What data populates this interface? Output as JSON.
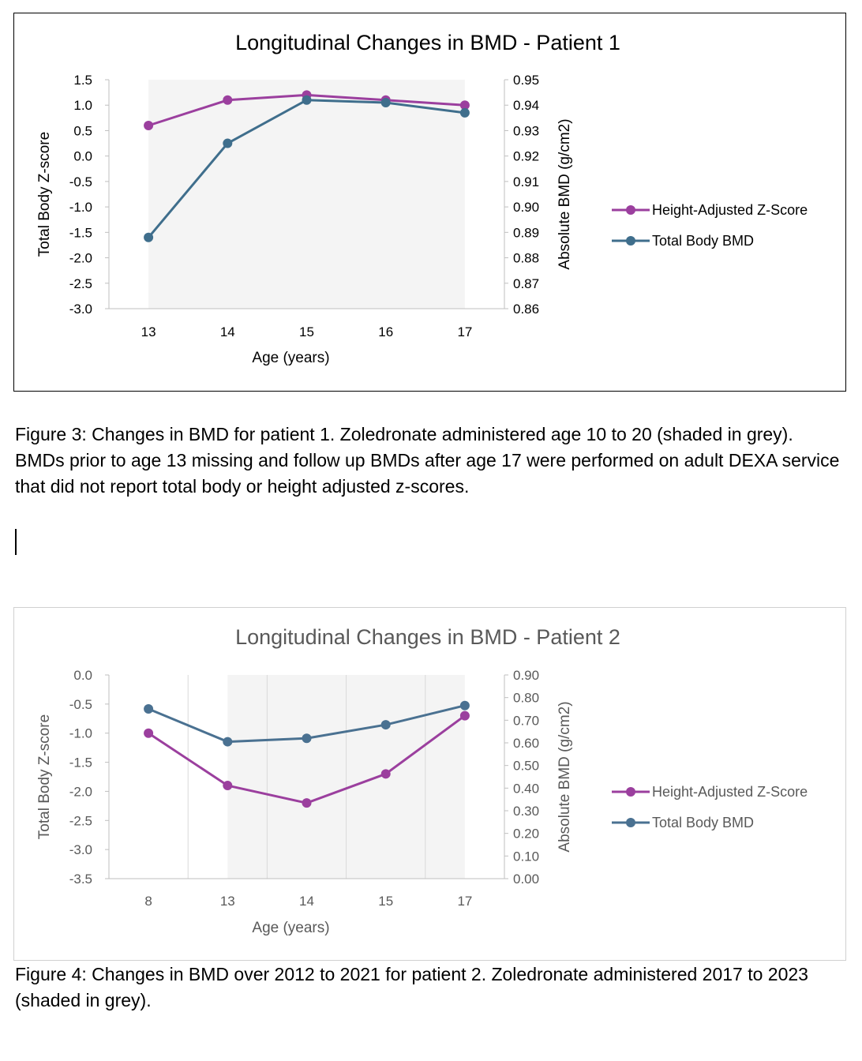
{
  "chart_data": [
    {
      "type": "line",
      "title": "Longitudinal Changes in BMD - Patient 1",
      "xlabel": "Age (years)",
      "ylabel": "Total Body Z-score",
      "ylabel2": "Absolute BMD (g/cm2)",
      "categories": [
        "13",
        "14",
        "15",
        "16",
        "17"
      ],
      "shaded_range": [
        "13",
        "17"
      ],
      "ylim": [
        -3.0,
        1.5
      ],
      "y_ticks": [
        "-3.0",
        "-2.5",
        "-2.0",
        "-1.5",
        "-1.0",
        "-0.5",
        "0.0",
        "0.5",
        "1.0",
        "1.5"
      ],
      "y2lim": [
        0.86,
        0.95
      ],
      "y2_ticks": [
        "0.86",
        "0.87",
        "0.88",
        "0.89",
        "0.90",
        "0.91",
        "0.92",
        "0.93",
        "0.94",
        "0.95"
      ],
      "series": [
        {
          "name": "Height-Adjusted Z-Score",
          "axis": "left",
          "color": "#9b3f9e",
          "values": [
            0.6,
            1.1,
            1.2,
            1.1,
            1.0
          ]
        },
        {
          "name": "Total Body BMD",
          "axis": "right",
          "color": "#3f6e8c",
          "values": [
            0.888,
            0.925,
            0.942,
            0.941,
            0.937
          ]
        }
      ],
      "legend_position": "right",
      "title_color": "#000000",
      "text_color": "#000000",
      "grid": false
    },
    {
      "type": "line",
      "title": "Longitudinal Changes in BMD - Patient 2",
      "xlabel": "Age (years)",
      "ylabel": "Total Body Z-score",
      "ylabel2": "Absolute BMD (g/cm2)",
      "categories": [
        "8",
        "13",
        "14",
        "15",
        "17"
      ],
      "shaded_range": [
        "13",
        "17"
      ],
      "ylim": [
        -3.5,
        0.0
      ],
      "y_ticks": [
        "-3.5",
        "-3.0",
        "-2.5",
        "-2.0",
        "-1.5",
        "-1.0",
        "-0.5",
        "0.0"
      ],
      "y2lim": [
        0.0,
        0.9
      ],
      "y2_ticks": [
        "0.00",
        "0.10",
        "0.20",
        "0.30",
        "0.40",
        "0.50",
        "0.60",
        "0.70",
        "0.80",
        "0.90"
      ],
      "series": [
        {
          "name": "Height-Adjusted Z-Score",
          "axis": "left",
          "color": "#9b3f9e",
          "values": [
            -1.0,
            -1.9,
            -2.2,
            -1.7,
            -0.7
          ]
        },
        {
          "name": "Total Body BMD",
          "axis": "right",
          "color": "#4a7191",
          "values": [
            0.75,
            0.605,
            0.62,
            0.68,
            0.765
          ]
        }
      ],
      "legend_position": "right",
      "title_color": "#595959",
      "text_color": "#595959",
      "grid": "vertical"
    }
  ],
  "captions": {
    "figure3": "Figure 3: Changes in BMD for patient 1. Zoledronate administered age 10 to 20 (shaded in grey). BMDs prior to age 13 missing and follow up BMDs after age 17 were performed on adult DEXA service that did not report total body or height adjusted z-scores.",
    "figure4": "Figure 4: Changes in BMD over 2012 to 2021 for patient 2. Zoledronate administered 2017 to 2023 (shaded in grey)."
  }
}
